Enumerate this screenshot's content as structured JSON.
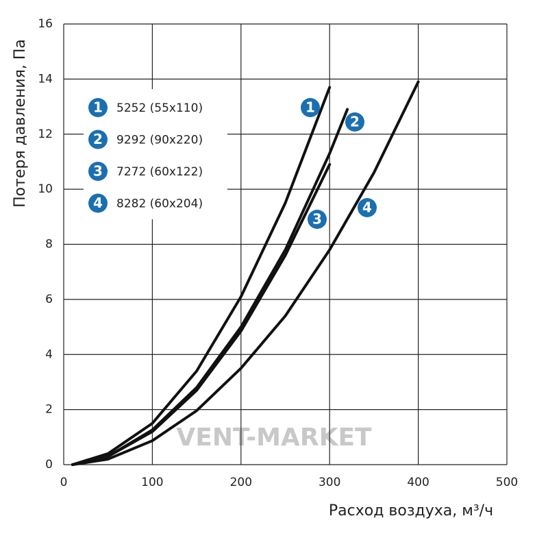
{
  "chart_data": {
    "type": "line",
    "xlabel": "Расход воздуха, м³/ч",
    "ylabel": "Потеря давления, Па",
    "watermark": "VENT-MARKET",
    "xlim": [
      0,
      500
    ],
    "xticks": [
      0,
      100,
      200,
      300,
      400,
      500
    ],
    "ylim": [
      0,
      16
    ],
    "yticks": [
      0,
      2,
      4,
      6,
      8,
      10,
      12,
      14,
      16
    ],
    "grid": true,
    "marker_color": "#1a6fb0",
    "series": [
      {
        "label": "1",
        "name": "5252 (55x110)",
        "color": "#111111",
        "x": [
          10,
          50,
          100,
          150,
          200,
          250,
          300
        ],
        "values": [
          0,
          0.4,
          1.5,
          3.4,
          6.1,
          9.5,
          13.7
        ]
      },
      {
        "label": "2",
        "name": "9292 (90x220)",
        "color": "#111111",
        "x": [
          10,
          50,
          100,
          150,
          200,
          250,
          300,
          320
        ],
        "values": [
          0,
          0.3,
          1.26,
          2.8,
          5.0,
          7.8,
          11.3,
          12.9
        ]
      },
      {
        "label": "3",
        "name": "7272 (60x122)",
        "color": "#111111",
        "x": [
          10,
          50,
          100,
          150,
          200,
          250,
          300
        ],
        "values": [
          0,
          0.3,
          1.2,
          2.7,
          4.85,
          7.6,
          10.9
        ]
      },
      {
        "label": "4",
        "name": "8282 (60x204)",
        "color": "#111111",
        "x": [
          10,
          50,
          100,
          150,
          200,
          250,
          300,
          350,
          400
        ],
        "values": [
          0,
          0.2,
          0.87,
          1.96,
          3.5,
          5.4,
          7.8,
          10.6,
          13.9
        ]
      }
    ]
  }
}
